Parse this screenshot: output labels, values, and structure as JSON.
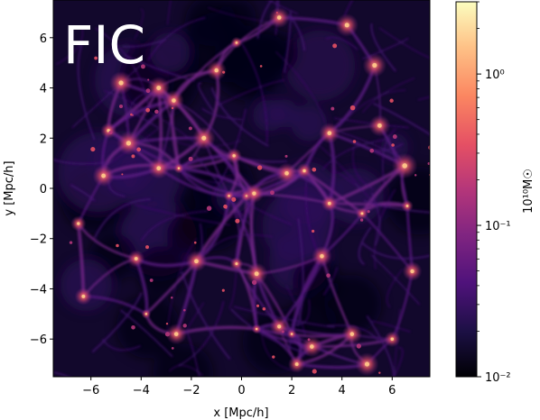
{
  "figure": {
    "panel_label": "FIC",
    "xlabel": "x [Mpc/h]",
    "ylabel": "y [Mpc/h]",
    "x_ticks": [
      "−6",
      "−4",
      "−2",
      "0",
      "2",
      "4",
      "6"
    ],
    "x_tick_values": [
      -6,
      -4,
      -2,
      0,
      2,
      4,
      6
    ],
    "y_ticks": [
      "−6",
      "−4",
      "−2",
      "0",
      "2",
      "4",
      "6"
    ],
    "y_tick_values": [
      -6,
      -4,
      -2,
      0,
      2,
      4,
      6
    ],
    "xlim": [
      -7.5,
      7.5
    ],
    "ylim": [
      -7.5,
      7.5
    ],
    "colorbar": {
      "label": "10¹⁰M☉",
      "scale": "log",
      "range": [
        0.01,
        3.0
      ],
      "major_ticks": [
        "10⁻²",
        "10⁻¹",
        "10⁰"
      ],
      "major_tick_values": [
        0.01,
        0.1,
        1
      ],
      "colormap": "magma",
      "colors": [
        "#000004",
        "#1c1044",
        "#4f127b",
        "#812581",
        "#b5367a",
        "#e55064",
        "#fb8761",
        "#fec287",
        "#fcfdbf"
      ]
    },
    "image_description_colors": {
      "background": "#ffffff",
      "text": "#000000",
      "panel_label_color": "#ffffff"
    }
  }
}
